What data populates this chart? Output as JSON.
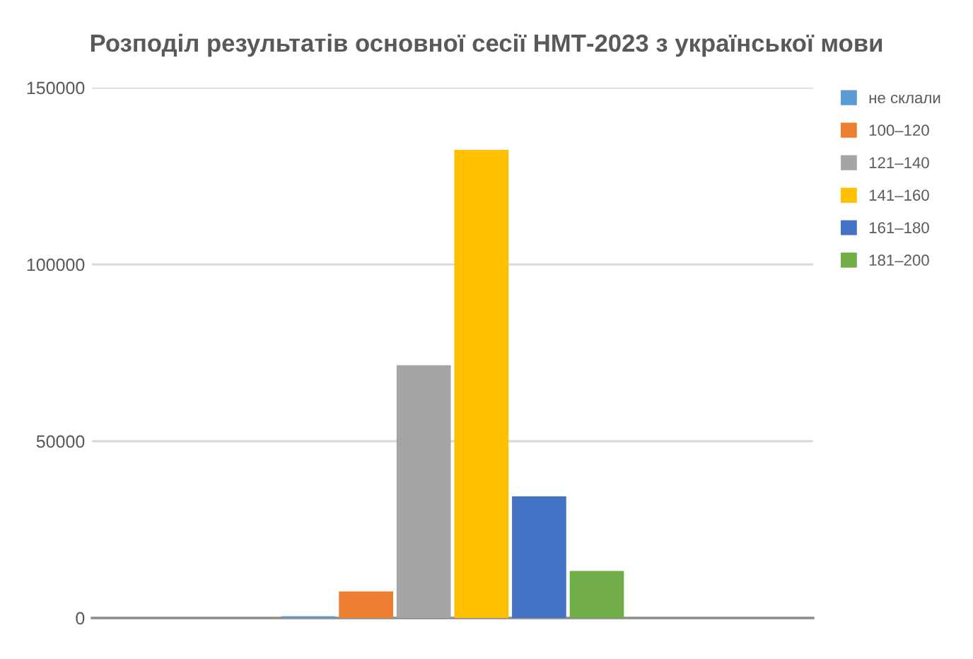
{
  "chart_data": {
    "type": "bar",
    "title": "Розподіл результатів основної сесії НМТ-2023 з української мови",
    "categories": [
      null
    ],
    "series": [
      {
        "name": "не склали",
        "color": "#5b9bd5",
        "values": [
          500
        ]
      },
      {
        "name": "100–120",
        "color": "#ed7d31",
        "values": [
          7500
        ]
      },
      {
        "name": "121–140",
        "color": "#a5a5a5",
        "values": [
          71500
        ]
      },
      {
        "name": "141–160",
        "color": "#ffc000",
        "values": [
          132400
        ]
      },
      {
        "name": "161–180",
        "color": "#4472c4",
        "values": [
          34400
        ]
      },
      {
        "name": "181–200",
        "color": "#70ad47",
        "values": [
          13300
        ]
      }
    ],
    "ylim": [
      0,
      150000
    ],
    "yticks": [
      0,
      50000,
      100000,
      150000
    ],
    "grid": "y",
    "legend": "right"
  }
}
